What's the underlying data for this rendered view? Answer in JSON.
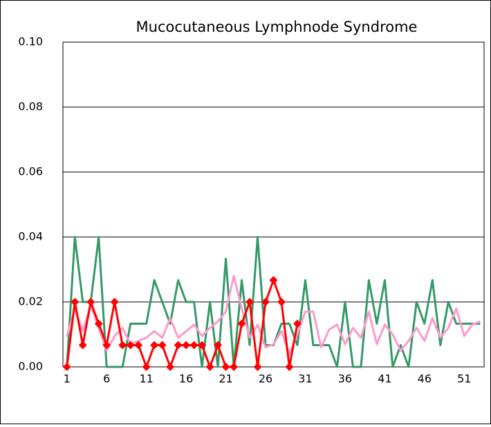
{
  "chart_data": {
    "type": "line",
    "title": "Mucocutaneous Lymphnode Syndrome",
    "categories": [
      1,
      null,
      null,
      null,
      null,
      6,
      null,
      null,
      null,
      null,
      11,
      null,
      null,
      null,
      null,
      16,
      null,
      null,
      null,
      null,
      21,
      null,
      null,
      null,
      null,
      26,
      null,
      null,
      null,
      null,
      31,
      null,
      null,
      null,
      null,
      36,
      null,
      null,
      null,
      null,
      41,
      null,
      null,
      null,
      null,
      46,
      null,
      null,
      null,
      null,
      51,
      null,
      null
    ],
    "series": [
      {
        "color": "#339966",
        "marker": false,
        "values": [
          0,
          0.04,
          0.02,
          0.02,
          0.04,
          0,
          0,
          0,
          0.0133,
          0.0133,
          0.0133,
          0.0267,
          0.02,
          0.0133,
          0.0267,
          0.02,
          0.02,
          0,
          0.02,
          0,
          0.0333,
          0,
          0.0267,
          0.0067,
          0.04,
          0.0067,
          0.0067,
          0.0133,
          0.0133,
          0.0067,
          0.0267,
          0.0067,
          0.0067,
          0.0067,
          0,
          0.02,
          0,
          0,
          0.0267,
          0.0133,
          0.0267,
          0,
          0.0067,
          0,
          0.02,
          0.0133,
          0.0267,
          0.0067,
          0.02,
          0.0133,
          0.0133,
          0.0133,
          0.0133
        ]
      },
      {
        "color": "#ff99cc",
        "marker": false,
        "values": [
          0.0093,
          0.018,
          0.011,
          0.019,
          0.012,
          0.005,
          0.0095,
          0.012,
          0.007,
          0.008,
          0.009,
          0.011,
          0.009,
          0.015,
          0.009,
          0.011,
          0.013,
          0.0095,
          0.012,
          0.014,
          0.017,
          0.028,
          0.018,
          0.009,
          0.013,
          0.006,
          0.007,
          0.011,
          0.004,
          0.01,
          0.017,
          0.017,
          0.006,
          0.0115,
          0.013,
          0.007,
          0.012,
          0.009,
          0.017,
          0.007,
          0.013,
          0.01,
          0.005,
          0.008,
          0.012,
          0.008,
          0.015,
          0.009,
          0.012,
          0.018,
          0.0095,
          0.013,
          0.014
        ]
      },
      {
        "color": "#ff0000",
        "marker": true,
        "values": [
          0,
          0.02,
          0.0067,
          0.02,
          0.0133,
          0.0067,
          0.02,
          0.0067,
          0.0067,
          0.0067,
          0,
          0.0067,
          0.0067,
          0,
          0.0067,
          0.0067,
          0.0067,
          0.0067,
          0,
          0.0067,
          0,
          0,
          0.0133,
          0.02,
          0,
          0.02,
          0.0267,
          0.02,
          0,
          0.0133,
          null,
          null,
          null,
          null,
          null,
          null,
          null,
          null,
          null,
          null,
          null,
          null,
          null,
          null,
          null,
          null,
          null,
          null,
          null,
          null,
          null,
          null,
          null
        ]
      }
    ],
    "ylim": [
      0,
      0.1
    ],
    "yticks": [
      {
        "value": 0,
        "label": "0.00"
      },
      {
        "value": 0.02,
        "label": "0.02"
      },
      {
        "value": 0.04,
        "label": "0.04"
      },
      {
        "value": 0.06,
        "label": "0.06"
      },
      {
        "value": 0.08,
        "label": "0.08"
      },
      {
        "value": 0.1,
        "label": "0.10"
      }
    ],
    "grid": true
  }
}
